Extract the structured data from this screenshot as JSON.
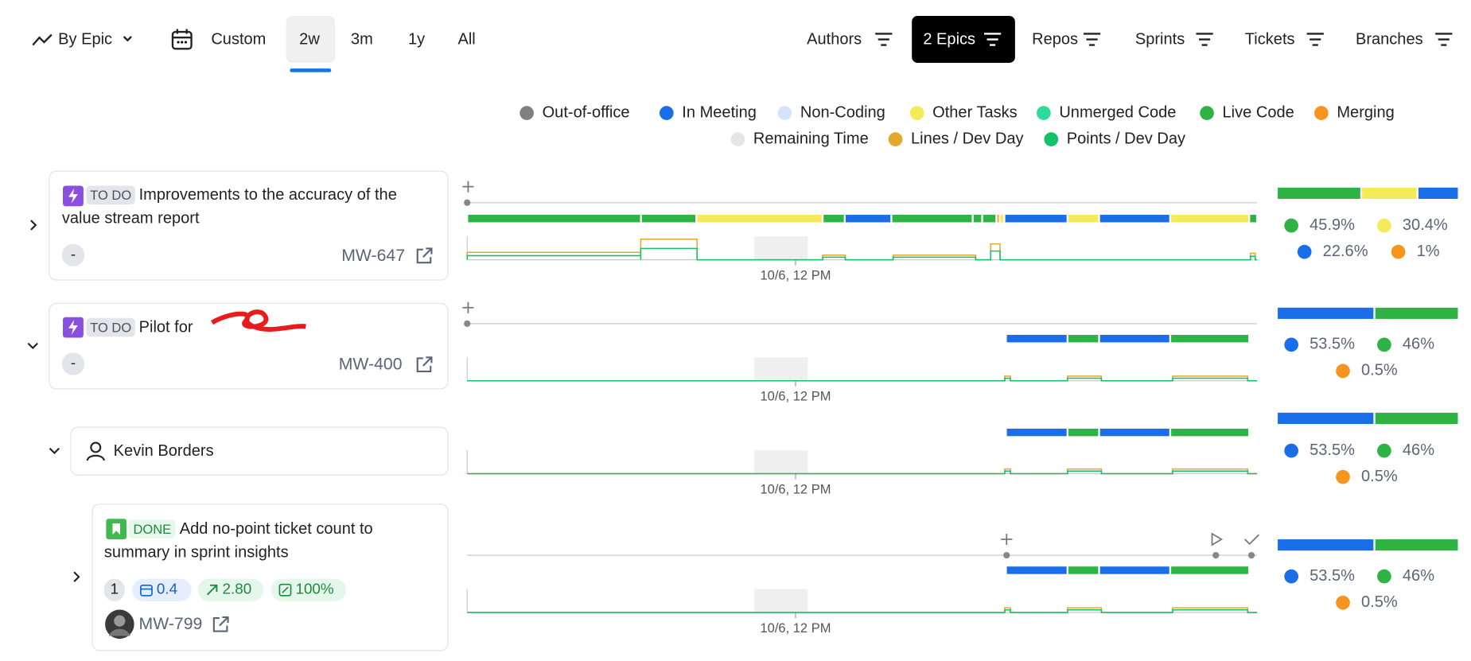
{
  "toolbar": {
    "group_by": "By Epic",
    "ranges": [
      "Custom",
      "2w",
      "3m",
      "1y",
      "All"
    ],
    "filters": [
      "Authors",
      "2 Epics",
      "Repos",
      "Sprints",
      "Tickets",
      "Branches"
    ]
  },
  "legend": [
    {
      "label": "Out-of-office",
      "color": "#808080"
    },
    {
      "label": "In Meeting",
      "color": "#1a6ee8"
    },
    {
      "label": "Non-Coding",
      "color": "#d6e4fb"
    },
    {
      "label": "Other Tasks",
      "color": "#f5ea5a"
    },
    {
      "label": "Unmerged Code",
      "color": "#2ddc98"
    },
    {
      "label": "Live Code",
      "color": "#2fb344"
    },
    {
      "label": "Merging",
      "color": "#f7941d"
    },
    {
      "label": "Remaining Time",
      "color": "#e6e6e6"
    },
    {
      "label": "Lines / Dev Day",
      "color": "#e2a92c"
    },
    {
      "label": "Points / Dev Day",
      "color": "#12c26a"
    }
  ],
  "rows": [
    {
      "status": "TO DO",
      "title": "Improvements to the accuracy of the value stream report",
      "points": "-",
      "key": "MW-647",
      "axis_label": "10/6, 12 PM",
      "breakdown": [
        {
          "label": "45.9%",
          "color": "#2fb344"
        },
        {
          "label": "30.4%",
          "color": "#f5ea5a"
        },
        {
          "label": "22.6%",
          "color": "#1a6ee8"
        },
        {
          "label": "1%",
          "color": "#f7941d"
        }
      ]
    },
    {
      "status": "TO DO",
      "title": "Pilot for",
      "points": "-",
      "key": "MW-400",
      "axis_label": "10/6, 12 PM",
      "breakdown": [
        {
          "label": "53.5%",
          "color": "#1a6ee8"
        },
        {
          "label": "46%",
          "color": "#2fb344"
        },
        {
          "label": "0.5%",
          "color": "#f7941d"
        }
      ]
    },
    {
      "name": "Kevin Borders",
      "axis_label": "10/6, 12 PM",
      "breakdown": [
        {
          "label": "53.5%",
          "color": "#1a6ee8"
        },
        {
          "label": "46%",
          "color": "#2fb344"
        },
        {
          "label": "0.5%",
          "color": "#f7941d"
        }
      ]
    },
    {
      "status": "DONE",
      "title": "Add no-point ticket count to summary in sprint insights",
      "count": "1",
      "metrics": [
        "0.4",
        "2.80",
        "100%"
      ],
      "key": "MW-799",
      "axis_label": "10/6, 12 PM",
      "breakdown": [
        {
          "label": "53.5%",
          "color": "#1a6ee8"
        },
        {
          "label": "46%",
          "color": "#2fb344"
        },
        {
          "label": "0.5%",
          "color": "#f7941d"
        }
      ]
    }
  ]
}
